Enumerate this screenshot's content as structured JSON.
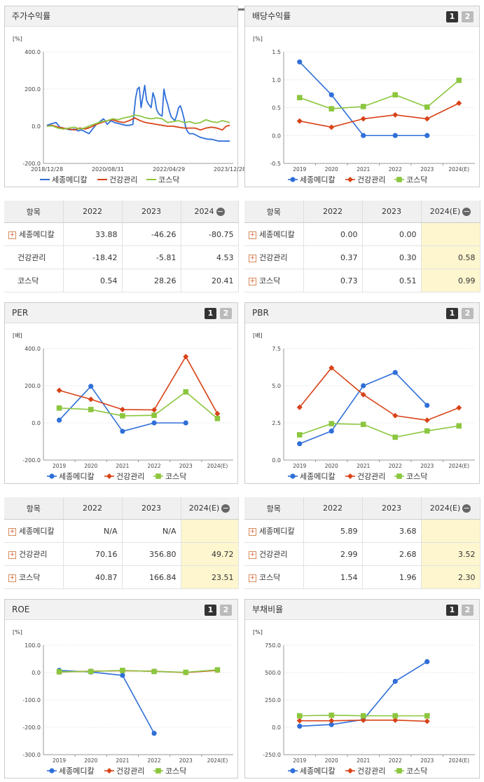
{
  "legend": [
    "세종메디칼",
    "건강관리",
    "코스닥"
  ],
  "colors": [
    "#2f6fd8",
    "#d84318",
    "#8cc63f"
  ],
  "panels": {
    "stock": {
      "title": "주가수익률"
    },
    "div": {
      "title": "배당수익률"
    },
    "per": {
      "title": "PER"
    },
    "pbr": {
      "title": "PBR"
    },
    "roe": {
      "title": "ROE"
    },
    "debt": {
      "title": "부채비율"
    }
  },
  "pages": [
    "1",
    "2"
  ],
  "tables": {
    "stock": {
      "head": [
        "항목",
        "2022",
        "2023",
        "2024"
      ],
      "rows": [
        {
          "name": "세종메디칼",
          "vals": [
            "33.88",
            "-46.26",
            "-80.75"
          ]
        },
        {
          "name": "건강관리",
          "vals": [
            "-18.42",
            "-5.81",
            "4.53"
          ]
        },
        {
          "name": "코스닥",
          "vals": [
            "0.54",
            "28.26",
            "20.41"
          ]
        }
      ]
    },
    "div": {
      "head": [
        "항목",
        "2022",
        "2023",
        "2024(E)"
      ],
      "rows": [
        {
          "name": "세종메디칼",
          "vals": [
            "0.00",
            "0.00",
            ""
          ]
        },
        {
          "name": "건강관리",
          "vals": [
            "0.37",
            "0.30",
            "0.58"
          ]
        },
        {
          "name": "코스닥",
          "vals": [
            "0.73",
            "0.51",
            "0.99"
          ]
        }
      ]
    },
    "per": {
      "head": [
        "항목",
        "2022",
        "2023",
        "2024(E)"
      ],
      "rows": [
        {
          "name": "세종메디칼",
          "vals": [
            "N/A",
            "N/A",
            ""
          ]
        },
        {
          "name": "건강관리",
          "vals": [
            "70.16",
            "356.80",
            "49.72"
          ]
        },
        {
          "name": "코스닥",
          "vals": [
            "40.87",
            "166.84",
            "23.51"
          ]
        }
      ]
    },
    "pbr": {
      "head": [
        "항목",
        "2022",
        "2023",
        "2024(E)"
      ],
      "rows": [
        {
          "name": "세종메디칼",
          "vals": [
            "5.89",
            "3.68",
            ""
          ]
        },
        {
          "name": "건강관리",
          "vals": [
            "2.99",
            "2.68",
            "3.52"
          ]
        },
        {
          "name": "코스닥",
          "vals": [
            "1.54",
            "1.96",
            "2.30"
          ]
        }
      ]
    }
  },
  "chart_data": [
    {
      "id": "stock",
      "type": "line",
      "unit": "[%]",
      "ylim": [
        -200,
        400
      ],
      "yticks": [
        "400.0",
        "200.0",
        "0.0",
        "-200.0"
      ],
      "xticks": [
        "2018/12/28",
        "2020/08/31",
        "2022/04/29",
        "2023/12/28"
      ],
      "xdomain": [
        0,
        100
      ],
      "series": [
        {
          "name": "세종메디칼",
          "x": [
            0,
            3,
            5,
            7,
            9,
            11,
            13,
            15,
            17,
            19,
            21,
            23,
            25,
            27,
            29,
            31,
            33,
            35,
            37,
            39,
            41,
            43,
            45,
            47,
            48.5,
            49.5,
            50.5,
            51.5,
            52.5,
            53.5,
            54.5,
            55.5,
            57,
            58,
            59,
            60,
            61,
            62,
            63,
            64,
            65,
            66,
            67,
            68,
            69,
            70,
            71,
            72,
            73,
            74,
            75,
            76,
            77,
            78,
            80,
            82,
            84,
            86,
            88,
            90,
            92,
            94,
            96,
            98,
            100
          ],
          "y": [
            5,
            15,
            20,
            -5,
            -10,
            -15,
            -20,
            -15,
            -25,
            -20,
            -30,
            -40,
            -15,
            10,
            25,
            40,
            10,
            30,
            20,
            15,
            10,
            5,
            5,
            10,
            150,
            200,
            210,
            100,
            160,
            220,
            140,
            120,
            100,
            180,
            150,
            90,
            70,
            60,
            55,
            200,
            150,
            120,
            80,
            50,
            40,
            30,
            60,
            100,
            110,
            80,
            40,
            -10,
            -30,
            -40,
            -40,
            -50,
            -60,
            -65,
            -70,
            -70,
            -75,
            -80,
            -80,
            -80,
            -80
          ]
        },
        {
          "name": "건강관리",
          "x": [
            0,
            3,
            6,
            9,
            12,
            15,
            18,
            21,
            24,
            27,
            30,
            33,
            36,
            39,
            42,
            45,
            48,
            51,
            54,
            57,
            60,
            63,
            66,
            69,
            72,
            75,
            78,
            81,
            84,
            87,
            90,
            93,
            96,
            98,
            100
          ],
          "y": [
            0,
            5,
            -5,
            -10,
            -15,
            -20,
            -10,
            -15,
            -5,
            10,
            20,
            30,
            35,
            25,
            20,
            30,
            45,
            30,
            20,
            15,
            10,
            5,
            0,
            0,
            -5,
            -10,
            -10,
            -10,
            -20,
            -10,
            -5,
            -10,
            -20,
            0,
            5
          ]
        },
        {
          "name": "코스닥",
          "x": [
            0,
            3,
            6,
            9,
            12,
            15,
            18,
            21,
            24,
            27,
            30,
            33,
            36,
            39,
            42,
            45,
            48,
            51,
            54,
            57,
            60,
            63,
            66,
            69,
            72,
            75,
            78,
            81,
            84,
            87,
            90,
            93,
            96,
            98,
            100
          ],
          "y": [
            0,
            2,
            -10,
            -15,
            -10,
            -5,
            -15,
            -8,
            5,
            15,
            25,
            30,
            40,
            35,
            45,
            50,
            60,
            55,
            45,
            40,
            45,
            40,
            20,
            25,
            30,
            20,
            25,
            15,
            20,
            35,
            25,
            20,
            30,
            25,
            20
          ]
        }
      ]
    },
    {
      "id": "div",
      "type": "line",
      "unit": "[%]",
      "ylim": [
        -0.5,
        1.5
      ],
      "yticks": [
        "1.5",
        "1.0",
        "0.5",
        "0.0",
        "-0.5"
      ],
      "xticks": [
        "2019",
        "2020",
        "2021",
        "2022",
        "2023",
        "2024(E)"
      ],
      "series": [
        {
          "name": "세종메디칼",
          "values": [
            1.32,
            0.73,
            0.0,
            0.0,
            0.0,
            null
          ]
        },
        {
          "name": "건강관리",
          "values": [
            0.26,
            0.15,
            0.3,
            0.37,
            0.3,
            0.58
          ]
        },
        {
          "name": "코스닥",
          "values": [
            0.68,
            0.48,
            0.52,
            0.73,
            0.51,
            0.99
          ]
        }
      ]
    },
    {
      "id": "per",
      "type": "line",
      "unit": "[배]",
      "ylim": [
        -200,
        400
      ],
      "yticks": [
        "400.0",
        "200.0",
        "0.0",
        "-200.0"
      ],
      "xticks": [
        "2019",
        "2020",
        "2021",
        "2022",
        "2023",
        "2024(E)"
      ],
      "series": [
        {
          "name": "세종메디칼",
          "values": [
            15,
            197,
            -45,
            0,
            0,
            null
          ]
        },
        {
          "name": "건강관리",
          "values": [
            175,
            127,
            72,
            70.16,
            356.8,
            49.72
          ]
        },
        {
          "name": "코스닥",
          "values": [
            80,
            72,
            38,
            40.87,
            166.84,
            23.51
          ]
        }
      ]
    },
    {
      "id": "pbr",
      "type": "line",
      "unit": "[배]",
      "ylim": [
        0,
        7.5
      ],
      "yticks": [
        "7.5",
        "5.0",
        "2.5",
        "0.0"
      ],
      "xticks": [
        "2019",
        "2020",
        "2021",
        "2022",
        "2023",
        "2024(E)"
      ],
      "series": [
        {
          "name": "세종메디칼",
          "values": [
            1.1,
            1.95,
            5.0,
            5.89,
            3.68,
            null
          ]
        },
        {
          "name": "건강관리",
          "values": [
            3.55,
            6.2,
            4.4,
            2.99,
            2.68,
            3.52
          ]
        },
        {
          "name": "코스닥",
          "values": [
            1.7,
            2.45,
            2.4,
            1.54,
            1.96,
            2.3
          ]
        }
      ]
    },
    {
      "id": "roe",
      "type": "line",
      "unit": "[%]",
      "ylim": [
        -300,
        100
      ],
      "yticks": [
        "100.0",
        "0.0",
        "-100.0",
        "-200.0",
        "-300.0"
      ],
      "xticks": [
        "2019",
        "2020",
        "2021",
        "2022",
        "2023",
        "2024(E)"
      ],
      "series": [
        {
          "name": "세종메디칼",
          "values": [
            8,
            2,
            -10,
            -222,
            null,
            null
          ]
        },
        {
          "name": "건강관리",
          "values": [
            2,
            5,
            7,
            5,
            0,
            8
          ]
        },
        {
          "name": "코스닥",
          "values": [
            3,
            4,
            8,
            4,
            1,
            10
          ]
        }
      ]
    },
    {
      "id": "debt",
      "type": "line",
      "unit": "[%]",
      "ylim": [
        -250,
        750
      ],
      "yticks": [
        "750.0",
        "500.0",
        "250.0",
        "0.0",
        "-250.0"
      ],
      "xticks": [
        "2019",
        "2020",
        "2021",
        "2022",
        "2023",
        "2024(E)"
      ],
      "series": [
        {
          "name": "세종메디칼",
          "values": [
            10,
            25,
            70,
            420,
            600,
            null
          ]
        },
        {
          "name": "건강관리",
          "values": [
            60,
            60,
            65,
            65,
            55,
            null
          ]
        },
        {
          "name": "코스닥",
          "values": [
            105,
            110,
            105,
            105,
            105,
            null
          ]
        }
      ]
    }
  ]
}
